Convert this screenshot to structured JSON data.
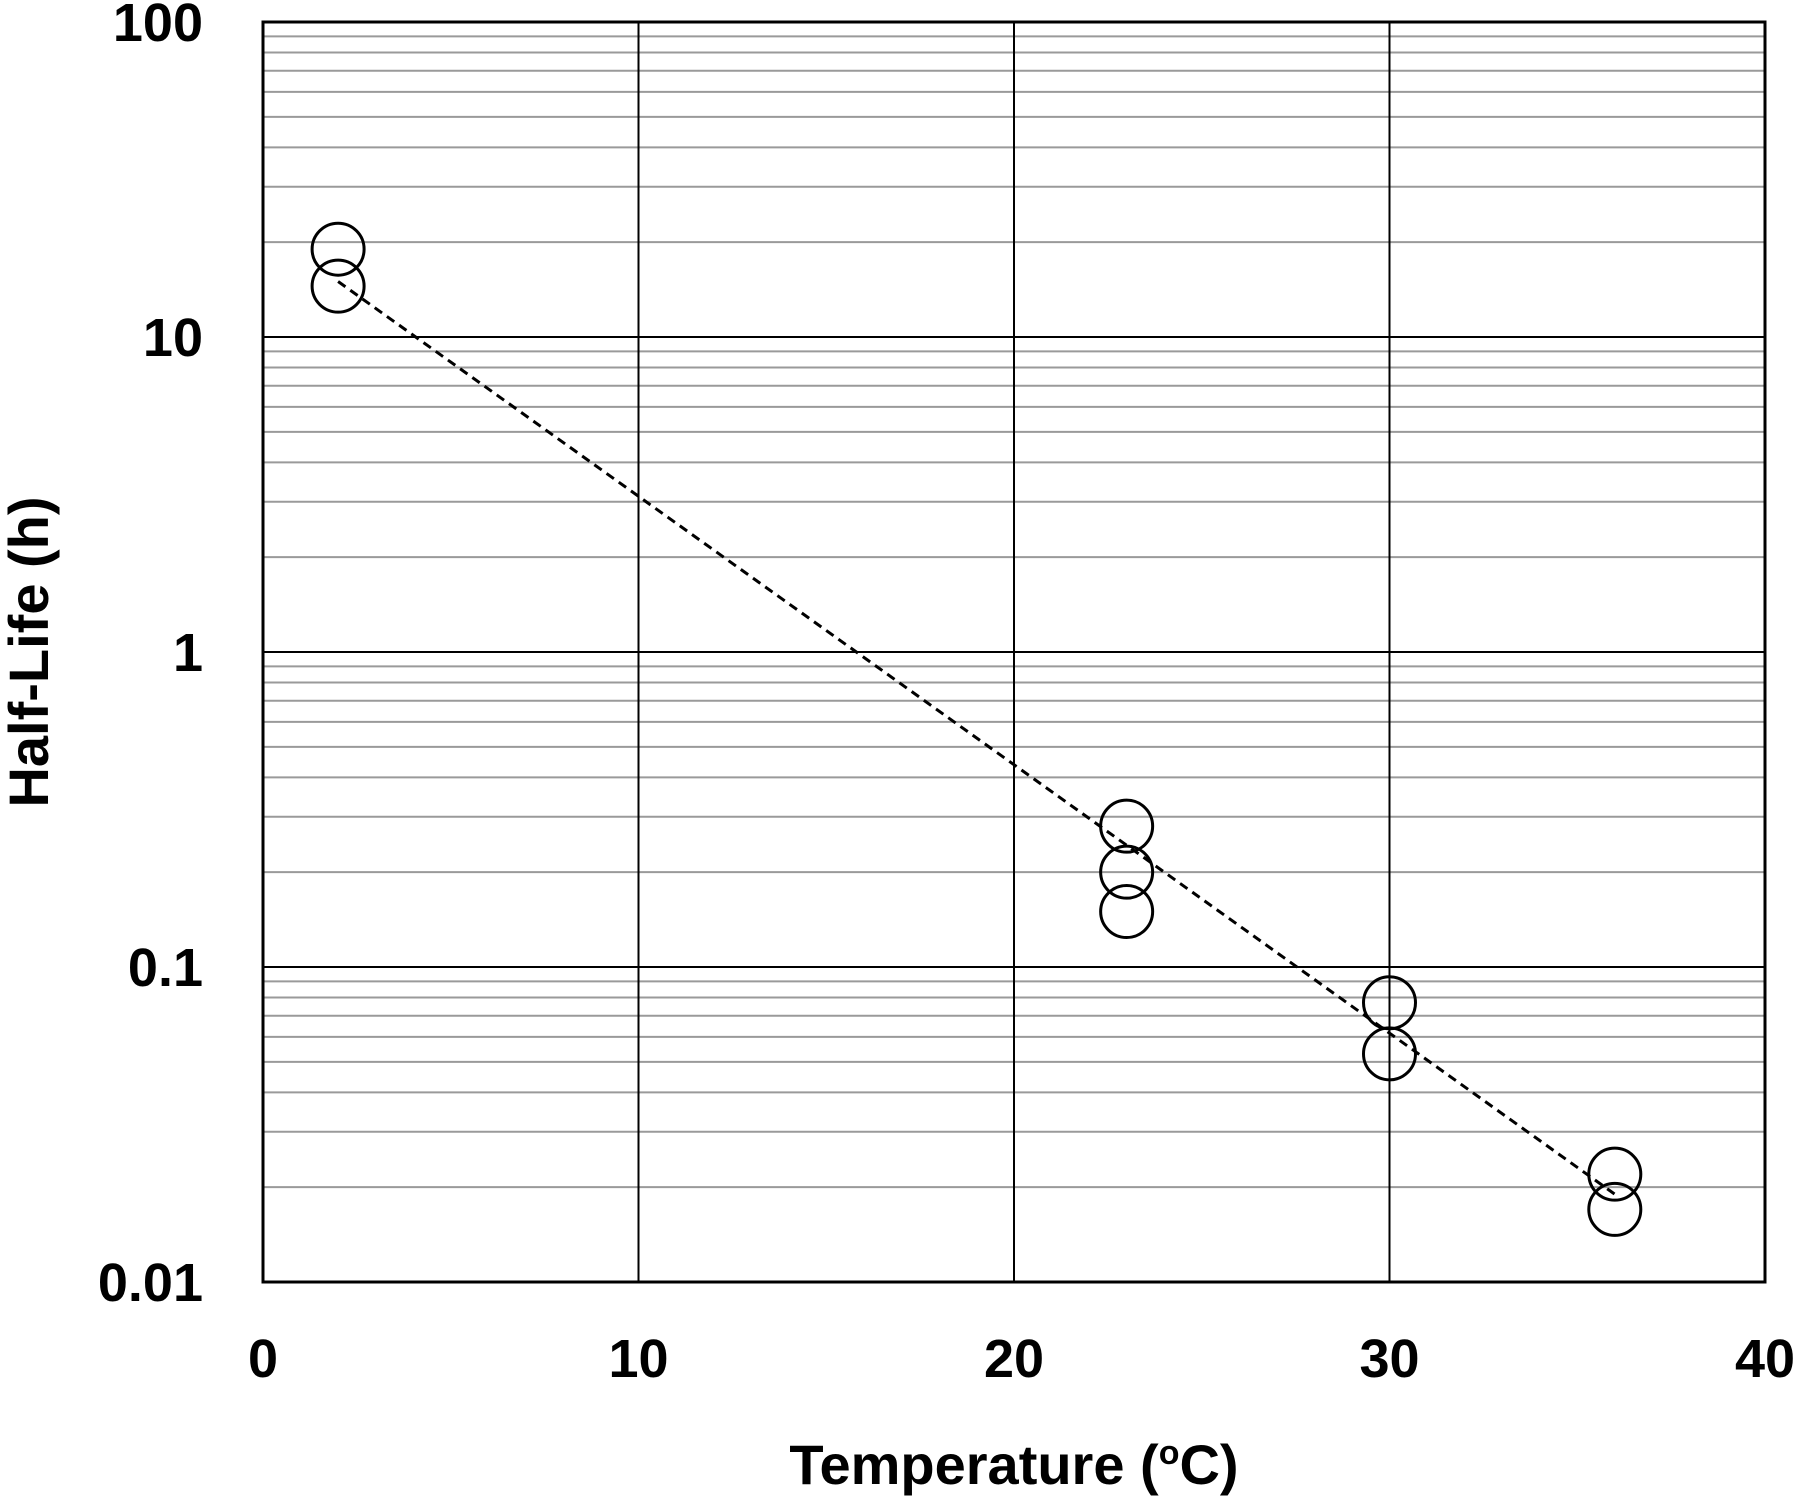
{
  "chart_data": {
    "type": "scatter",
    "title": "",
    "xlabel": {
      "prefix": "Temperature (",
      "superscript": "o",
      "suffix": "C)"
    },
    "ylabel": "Half-Life (h)",
    "x_scale": "linear",
    "y_scale": "log",
    "xlim": [
      0,
      40
    ],
    "ylim": [
      0.01,
      100
    ],
    "x_ticks": [
      0,
      10,
      20,
      30,
      40
    ],
    "x_tick_labels": [
      "0",
      "10",
      "20",
      "30",
      "40"
    ],
    "y_ticks": [
      0.01,
      0.1,
      1,
      10,
      100
    ],
    "y_tick_labels": [
      "0.01",
      "0.1",
      "1",
      "10",
      "100"
    ],
    "grid": {
      "major_x": true,
      "major_y": true,
      "minor_y": true
    },
    "legend": "none",
    "series": [
      {
        "marker": "open-circle",
        "points": [
          {
            "x": 2,
            "y": 19.0
          },
          {
            "x": 2,
            "y": 14.5
          },
          {
            "x": 23,
            "y": 0.28
          },
          {
            "x": 23,
            "y": 0.2
          },
          {
            "x": 23,
            "y": 0.15
          },
          {
            "x": 30,
            "y": 0.077
          },
          {
            "x": 30,
            "y": 0.053
          },
          {
            "x": 36,
            "y": 0.022
          },
          {
            "x": 36,
            "y": 0.017
          }
        ]
      }
    ],
    "trend_line": {
      "style": "dashed",
      "from": {
        "x": 2,
        "y": 15.0
      },
      "to": {
        "x": 36,
        "y": 0.019
      }
    }
  }
}
